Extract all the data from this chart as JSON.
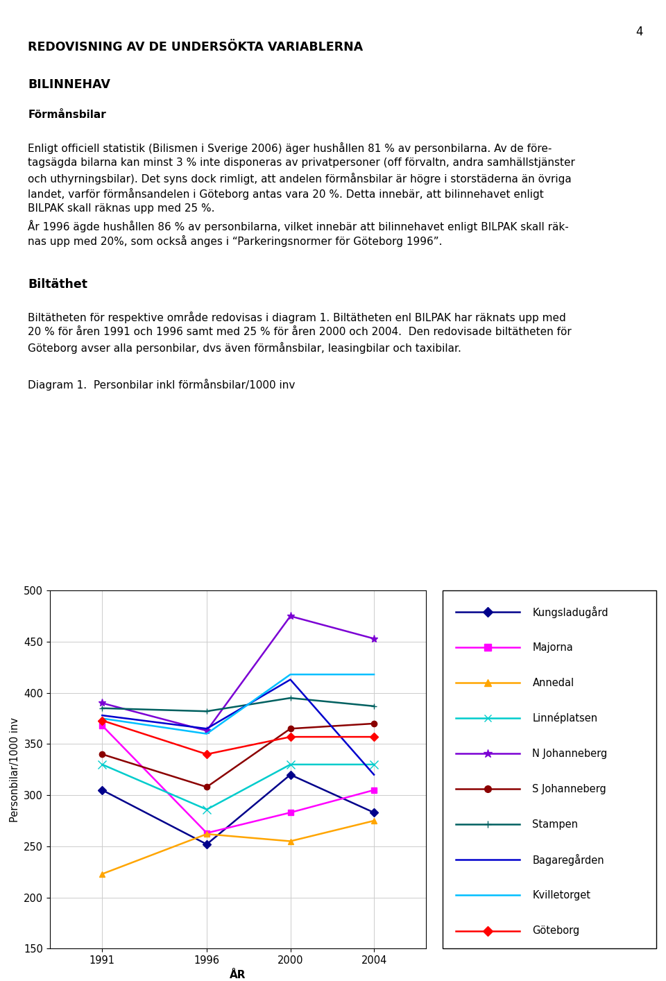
{
  "page_number": "4",
  "heading1": "REDOVISNING AV DE UNDERSÖKTA VARIABLERNA",
  "heading2": "BILINNEHAV",
  "heading3": "Förmånsbilar",
  "para1_lines": [
    "Enligt officiell statistik (Bilismen i Sverige 2006) äger hushållen 81 % av personbilarna. Av de före-",
    "tagsägda bilarna kan minst 3 % inte disponeras av privatpersoner (off förvaltn, andra samhällstjänster",
    "och uthyrningsbilar). Det syns dock rimligt, att andelen förmånsbilar är högre i storstäderna än övriga",
    "landet, varför förmånsandelen i Göteborg antas vara 20 %. Detta innebär, att bilinnehavet enligt",
    "BILPAK skall räknas upp med 25 %."
  ],
  "para2_lines": [
    "År 1996 ägde hushållen 86 % av personbilarna, vilket innebär att bilinnehavet enligt BILPAK skall räk-",
    "nas upp med 20%, som också anges i “Parkeringsnormer för Göteborg 1996”."
  ],
  "heading4": "Biltäthet",
  "para3_lines": [
    "Biltätheten för respektive område redovisas i diagram 1. Biltätheten enl BILPAK har räknats upp med",
    "20 % för åren 1991 och 1996 samt med 25 % för åren 2000 och 2004.  Den redovisade biltätheten för",
    "Göteborg avser alla personbilar, dvs även förmånsbilar, leasingbilar och taxibilar."
  ],
  "diagram_title": "Diagram 1.  Personbilar inkl förmånsbilar/1000 inv",
  "ylabel": "Personbilar/1000 inv",
  "xlabel": "ÅR",
  "years": [
    1991,
    1996,
    2000,
    2004
  ],
  "ylim": [
    150,
    500
  ],
  "yticks": [
    150,
    200,
    250,
    300,
    350,
    400,
    450,
    500
  ],
  "series": {
    "Kungsladugård": {
      "values": [
        305,
        252,
        320,
        283
      ],
      "color": "#00008B",
      "marker": "D"
    },
    "Majorna": {
      "values": [
        368,
        263,
        283,
        305
      ],
      "color": "#FF00FF",
      "marker": "s"
    },
    "Annedal": {
      "values": [
        223,
        262,
        255,
        275
      ],
      "color": "#FFA500",
      "marker": "^"
    },
    "Linnéplatsen": {
      "values": [
        330,
        286,
        330,
        330
      ],
      "color": "#00CCCC",
      "marker": "x"
    },
    "N Johanneberg": {
      "values": [
        390,
        363,
        475,
        453
      ],
      "color": "#7B00D4",
      "marker": "*"
    },
    "S Johanneberg": {
      "values": [
        340,
        308,
        365,
        370
      ],
      "color": "#8B0000",
      "marker": "o"
    },
    "Stampen": {
      "values": [
        385,
        382,
        395,
        387
      ],
      "color": "#006060",
      "marker": "+"
    },
    "Bagaregården": {
      "values": [
        378,
        365,
        413,
        320
      ],
      "color": "#0000CD",
      "marker": "none"
    },
    "Kvilletorget": {
      "values": [
        375,
        360,
        418,
        418
      ],
      "color": "#00BFFF",
      "marker": "none"
    },
    "Göteborg": {
      "values": [
        373,
        340,
        357,
        357
      ],
      "color": "#FF0000",
      "marker": "D"
    }
  },
  "legend_order": [
    "Kungsladugård",
    "Majorna",
    "Annedal",
    "Linnéplatsen",
    "N Johanneberg",
    "S Johanneberg",
    "Stampen",
    "Bagaregården",
    "Kvilletorget",
    "Göteborg"
  ]
}
